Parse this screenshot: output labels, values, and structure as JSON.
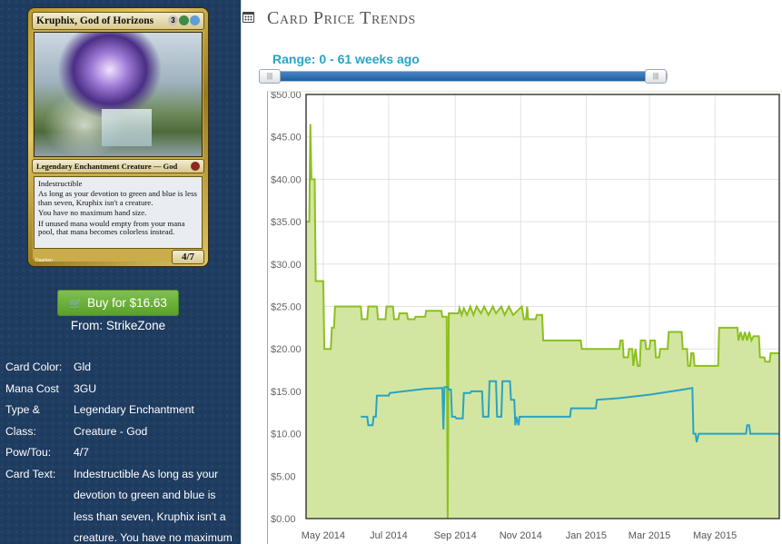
{
  "card": {
    "name": "Kruphix, God of Horizons",
    "mana_symbols": [
      "3",
      "G",
      "U"
    ],
    "type_line": "Legendary Enchantment Creature — God",
    "rules_text": [
      "Indestructible",
      "As long as your devotion to green and blue is less than seven, Kruphix isn't a creature.",
      "You have no maximum hand size.",
      "If unused mana would empty from your mana pool, that mana becomes colorless instead."
    ],
    "pt": "4/7",
    "artist": "Daarken"
  },
  "buy": {
    "label": "Buy for $16.63",
    "from": "From: StrikeZone"
  },
  "details": [
    {
      "label": "Card Color:",
      "value": "Gld"
    },
    {
      "label": "Mana Cost",
      "value": "3GU"
    },
    {
      "label": "Type & Class:",
      "value": "Legendary Enchantment Creature - God"
    },
    {
      "label": "Pow/Tou:",
      "value": "4/7"
    },
    {
      "label": "Card Text:",
      "value": "Indestructible As long as your devotion to green and blue is less than seven, Kruphix isn't a creature. You have no maximum"
    }
  ],
  "panel": {
    "title": "Card Price Trends",
    "icon": "calendar-icon",
    "range_label": "Range: 0 - 61 weeks ago"
  },
  "colors": {
    "sidebar": "#1f3c61",
    "buy_button": "#6fb33c",
    "accent": "#2aa3c3",
    "series_green": "#8dbf1f",
    "series_blue": "#2aa3c3",
    "fill_green": "#d2e6a2"
  },
  "chart_data": {
    "type": "line",
    "title": "",
    "xlabel": "",
    "ylabel": "",
    "ylim": [
      0,
      50
    ],
    "yticks": [
      "$0.00",
      "$5.00",
      "$10.00",
      "$15.00",
      "$20.00",
      "$25.00",
      "$30.00",
      "$35.00",
      "$40.00",
      "$45.00",
      "$50.00"
    ],
    "xticks": [
      "May 2014",
      "Jul 2014",
      "Sep 2014",
      "Nov 2014",
      "Jan 2015",
      "Mar 2015",
      "May 2015"
    ],
    "xlim": [
      "2014-04-15",
      "2015-06-30"
    ],
    "grid": true,
    "series": [
      {
        "color": "#8dbf1f",
        "fill": true,
        "points": [
          [
            "2014-04-15",
            35
          ],
          [
            "2014-04-18",
            35
          ],
          [
            "2014-04-19",
            46.5
          ],
          [
            "2014-04-20",
            40
          ],
          [
            "2014-04-23",
            40
          ],
          [
            "2014-04-24",
            28
          ],
          [
            "2014-05-01",
            28
          ],
          [
            "2014-05-02",
            20
          ],
          [
            "2014-05-08",
            20
          ],
          [
            "2014-05-09",
            22.5
          ],
          [
            "2014-05-11",
            22.5
          ],
          [
            "2014-05-12",
            25
          ],
          [
            "2014-06-05",
            25
          ],
          [
            "2014-06-06",
            23.5
          ],
          [
            "2014-06-11",
            23.5
          ],
          [
            "2014-06-12",
            25
          ],
          [
            "2014-06-20",
            25
          ],
          [
            "2014-06-21",
            23.5
          ],
          [
            "2014-06-28",
            23.5
          ],
          [
            "2014-06-29",
            25
          ],
          [
            "2014-07-05",
            25
          ],
          [
            "2014-07-06",
            23.5
          ],
          [
            "2014-07-10",
            23.5
          ],
          [
            "2014-07-11",
            24.2
          ],
          [
            "2014-07-18",
            24.2
          ],
          [
            "2014-07-19",
            23.5
          ],
          [
            "2014-07-25",
            23.5
          ],
          [
            "2014-07-26",
            23.8
          ],
          [
            "2014-08-04",
            23.8
          ],
          [
            "2014-08-05",
            24.5
          ],
          [
            "2014-08-19",
            24.5
          ],
          [
            "2014-08-20",
            23.8
          ],
          [
            "2014-08-24",
            23.8
          ],
          [
            "2014-08-25",
            0
          ],
          [
            "2014-08-26",
            24.2
          ],
          [
            "2014-09-04",
            24.2
          ],
          [
            "2014-09-05",
            24.8
          ],
          [
            "2014-09-07",
            24
          ],
          [
            "2014-09-09",
            24.8
          ],
          [
            "2014-09-12",
            24
          ],
          [
            "2014-09-15",
            25
          ],
          [
            "2014-09-18",
            24
          ],
          [
            "2014-09-21",
            25
          ],
          [
            "2014-09-25",
            24.2
          ],
          [
            "2014-09-28",
            25
          ],
          [
            "2014-10-02",
            24
          ],
          [
            "2014-10-06",
            25
          ],
          [
            "2014-10-09",
            24.2
          ],
          [
            "2014-10-14",
            25
          ],
          [
            "2014-10-17",
            24
          ],
          [
            "2014-10-21",
            25
          ],
          [
            "2014-10-25",
            24
          ],
          [
            "2014-11-02",
            25
          ],
          [
            "2014-11-04",
            23.5
          ],
          [
            "2014-11-06",
            23.5
          ],
          [
            "2014-11-07",
            25
          ],
          [
            "2014-11-08",
            23.5
          ],
          [
            "2014-11-15",
            23.5
          ],
          [
            "2014-11-16",
            24
          ],
          [
            "2014-11-21",
            24
          ],
          [
            "2014-11-22",
            21
          ],
          [
            "2014-12-27",
            21
          ],
          [
            "2014-12-28",
            20
          ],
          [
            "2015-02-01",
            20
          ],
          [
            "2015-02-02",
            21
          ],
          [
            "2015-02-04",
            21
          ],
          [
            "2015-02-05",
            19
          ],
          [
            "2015-02-09",
            19
          ],
          [
            "2015-02-10",
            20
          ],
          [
            "2015-02-13",
            20
          ],
          [
            "2015-02-14",
            18
          ],
          [
            "2015-02-16",
            20
          ],
          [
            "2015-02-18",
            18
          ],
          [
            "2015-02-20",
            18
          ],
          [
            "2015-02-21",
            21
          ],
          [
            "2015-02-25",
            21
          ],
          [
            "2015-02-26",
            20
          ],
          [
            "2015-03-01",
            20
          ],
          [
            "2015-03-02",
            21
          ],
          [
            "2015-03-06",
            21
          ],
          [
            "2015-03-07",
            19
          ],
          [
            "2015-03-10",
            19
          ],
          [
            "2015-03-11",
            20
          ],
          [
            "2015-03-18",
            20
          ],
          [
            "2015-03-19",
            22
          ],
          [
            "2015-03-31",
            22
          ],
          [
            "2015-04-01",
            20
          ],
          [
            "2015-04-05",
            20
          ],
          [
            "2015-04-06",
            18
          ],
          [
            "2015-04-08",
            18
          ],
          [
            "2015-04-09",
            19.5
          ],
          [
            "2015-04-11",
            19.5
          ],
          [
            "2015-04-12",
            18
          ],
          [
            "2015-05-04",
            18
          ],
          [
            "2015-05-05",
            22.5
          ],
          [
            "2015-05-22",
            22.5
          ],
          [
            "2015-05-23",
            21
          ],
          [
            "2015-05-25",
            22
          ],
          [
            "2015-05-27",
            21
          ],
          [
            "2015-05-29",
            22
          ],
          [
            "2015-05-31",
            21
          ],
          [
            "2015-06-02",
            22
          ],
          [
            "2015-06-04",
            21
          ],
          [
            "2015-06-06",
            21.5
          ],
          [
            "2015-06-11",
            21.5
          ],
          [
            "2015-06-12",
            19
          ],
          [
            "2015-06-16",
            19
          ],
          [
            "2015-06-17",
            18.5
          ],
          [
            "2015-06-21",
            18.5
          ],
          [
            "2015-06-22",
            19.5
          ],
          [
            "2015-06-30",
            19.5
          ]
        ]
      },
      {
        "color": "#2aa3c3",
        "fill": false,
        "points": [
          [
            "2014-06-05",
            12
          ],
          [
            "2014-06-11",
            12
          ],
          [
            "2014-06-12",
            11
          ],
          [
            "2014-06-16",
            11
          ],
          [
            "2014-06-17",
            12
          ],
          [
            "2014-06-19",
            12
          ],
          [
            "2014-06-20",
            14.5
          ],
          [
            "2014-07-01",
            14.5
          ],
          [
            "2014-07-02",
            14.8
          ],
          [
            "2014-07-15",
            15
          ],
          [
            "2014-08-04",
            15.3
          ],
          [
            "2014-08-20",
            15.4
          ],
          [
            "2014-08-21",
            10.5
          ],
          [
            "2014-08-22",
            15.5
          ],
          [
            "2014-08-25",
            15.5
          ],
          [
            "2014-08-26",
            15.2
          ],
          [
            "2014-08-28",
            15.2
          ],
          [
            "2014-08-29",
            12
          ],
          [
            "2014-09-01",
            12
          ],
          [
            "2014-09-02",
            11.8
          ],
          [
            "2014-09-08",
            11.8
          ],
          [
            "2014-09-09",
            14.8
          ],
          [
            "2014-09-15",
            14.8
          ],
          [
            "2014-09-16",
            15
          ],
          [
            "2014-09-26",
            15
          ],
          [
            "2014-09-27",
            12
          ],
          [
            "2014-10-02",
            12
          ],
          [
            "2014-10-03",
            16.2
          ],
          [
            "2014-10-09",
            16.2
          ],
          [
            "2014-10-10",
            12
          ],
          [
            "2014-10-14",
            12
          ],
          [
            "2014-10-15",
            16.2
          ],
          [
            "2014-10-22",
            16.2
          ],
          [
            "2014-10-23",
            14
          ],
          [
            "2014-10-26",
            14
          ],
          [
            "2014-10-27",
            11
          ],
          [
            "2014-10-28",
            12
          ],
          [
            "2014-10-30",
            11
          ],
          [
            "2014-10-31",
            12
          ],
          [
            "2014-12-17",
            12
          ],
          [
            "2014-12-18",
            13
          ],
          [
            "2015-01-10",
            13
          ],
          [
            "2015-01-11",
            14
          ],
          [
            "2015-02-01",
            14.2
          ],
          [
            "2015-03-01",
            14.6
          ],
          [
            "2015-04-01",
            15.2
          ],
          [
            "2015-04-10",
            15.4
          ],
          [
            "2015-04-11",
            10
          ],
          [
            "2015-04-13",
            10
          ],
          [
            "2015-04-14",
            9
          ],
          [
            "2015-04-16",
            10
          ],
          [
            "2015-05-30",
            10
          ],
          [
            "2015-05-31",
            11
          ],
          [
            "2015-06-02",
            11
          ],
          [
            "2015-06-03",
            10
          ],
          [
            "2015-06-30",
            10
          ]
        ]
      }
    ]
  }
}
